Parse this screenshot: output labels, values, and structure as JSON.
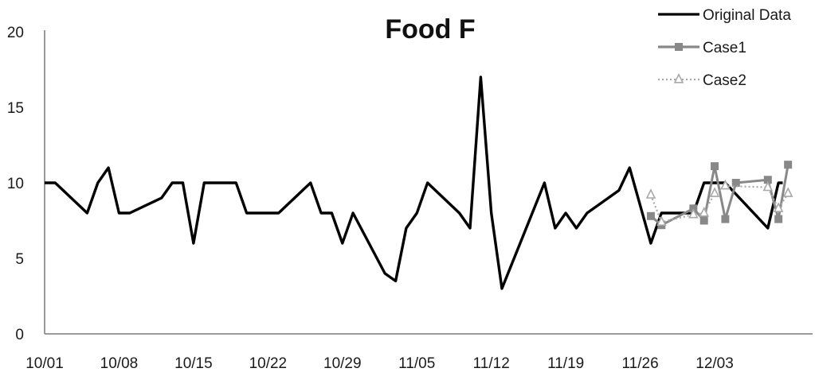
{
  "chart_data": {
    "type": "line",
    "title": "Food F",
    "xlabel": "",
    "ylabel": "",
    "ylim": [
      0,
      20
    ],
    "y_ticks": [
      "0",
      "5",
      "10",
      "15",
      "20"
    ],
    "x_tick_labels": [
      "10/01",
      "10/08",
      "10/15",
      "10/22",
      "10/29",
      "11/05",
      "11/12",
      "11/19",
      "11/26",
      "12/03"
    ],
    "x_tick_index": [
      0,
      7,
      14,
      21,
      28,
      35,
      42,
      49,
      56,
      63
    ],
    "x_range": [
      0,
      69
    ],
    "grid": false,
    "legend_position": "top-right",
    "series": [
      {
        "name": "Original Data",
        "color": "#000000",
        "marker": "none",
        "style": "solid",
        "points": [
          [
            0,
            10
          ],
          [
            1,
            10
          ],
          [
            4,
            8
          ],
          [
            5,
            10
          ],
          [
            6,
            11
          ],
          [
            7,
            8
          ],
          [
            8,
            8
          ],
          [
            11,
            9
          ],
          [
            12,
            10
          ],
          [
            13,
            10
          ],
          [
            14,
            6
          ],
          [
            15,
            10
          ],
          [
            18,
            10
          ],
          [
            19,
            8
          ],
          [
            22,
            8
          ],
          [
            25,
            10
          ],
          [
            26,
            8
          ],
          [
            27,
            8
          ],
          [
            28,
            6
          ],
          [
            29,
            8
          ],
          [
            32,
            4
          ],
          [
            33,
            3.5
          ],
          [
            34,
            7
          ],
          [
            35,
            8
          ],
          [
            36,
            10
          ],
          [
            39,
            8
          ],
          [
            40,
            7
          ],
          [
            41,
            17
          ],
          [
            42,
            8
          ],
          [
            43,
            3
          ],
          [
            47,
            10
          ],
          [
            48,
            7
          ],
          [
            49,
            8
          ],
          [
            50,
            7
          ],
          [
            51,
            8
          ],
          [
            54,
            9.5
          ],
          [
            55,
            11
          ],
          [
            57,
            6
          ],
          [
            58,
            8
          ],
          [
            61,
            8
          ],
          [
            62,
            10
          ],
          [
            64,
            10
          ],
          [
            68,
            7
          ],
          [
            69,
            10
          ],
          [
            69.4,
            10
          ]
        ]
      },
      {
        "name": "Case1",
        "color": "#888888",
        "marker": "square",
        "style": "solid",
        "points": [
          [
            57,
            7.8
          ],
          [
            58,
            7.2
          ],
          [
            61,
            8.3
          ],
          [
            62,
            7.5
          ],
          [
            63,
            11.1
          ],
          [
            64,
            7.6
          ],
          [
            65,
            10
          ],
          [
            68,
            10.2
          ],
          [
            69,
            7.6
          ],
          [
            69.9,
            11.2
          ]
        ]
      },
      {
        "name": "Case2",
        "color": "#a8a8a8",
        "marker": "triangle",
        "style": "dotted",
        "points": [
          [
            57,
            9.2
          ],
          [
            58,
            7.4
          ],
          [
            61,
            7.9
          ],
          [
            62,
            8.0
          ],
          [
            63,
            9.3
          ],
          [
            64,
            9.8
          ],
          [
            68,
            9.7
          ],
          [
            69,
            8.3
          ],
          [
            69.9,
            9.3
          ]
        ]
      }
    ]
  }
}
